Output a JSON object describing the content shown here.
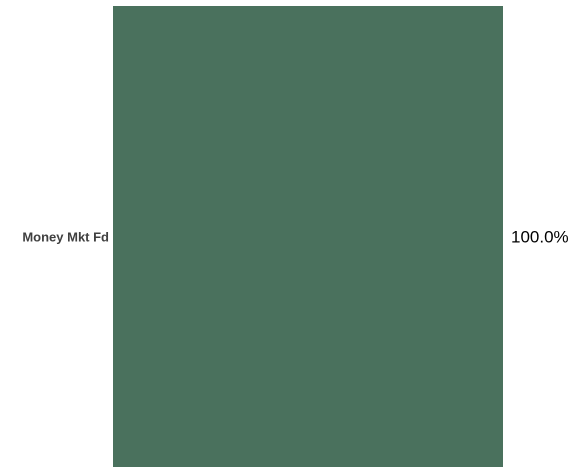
{
  "chart_data": {
    "type": "bar",
    "orientation": "horizontal",
    "stacked": true,
    "categories": [
      "Money Mkt Fd"
    ],
    "series": [
      {
        "values": [
          100.0
        ],
        "value_labels": [
          "100.0%"
        ],
        "color": "#4a715d"
      }
    ],
    "xlim": [
      0,
      100
    ],
    "grid": false,
    "legend": "none"
  }
}
